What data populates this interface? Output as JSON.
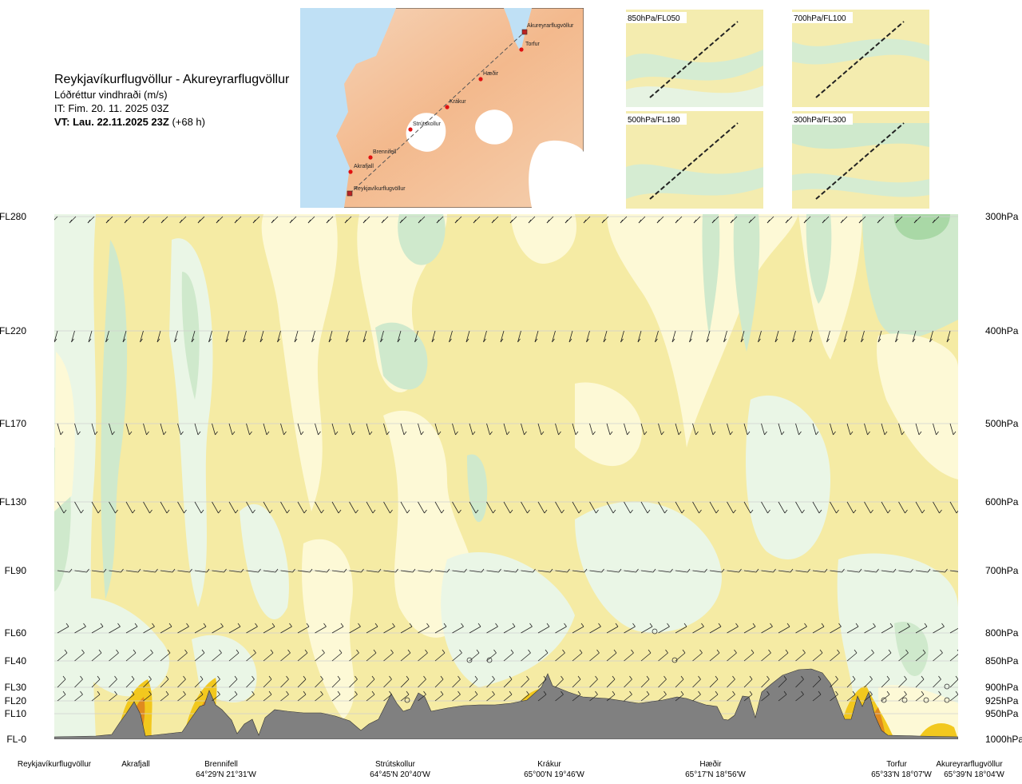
{
  "title": {
    "route": "Reykjavíkurflugvöllur - Akureyrarflugvöllur",
    "subtitle": "Lóðréttur vindhraði (m/s)",
    "issue_time": "IT: Fim. 20. 11. 2025 03Z",
    "valid_time_bold": "VT: Lau. 22.11.2025 23Z",
    "valid_offset": "(+68 h)"
  },
  "map": {
    "places": [
      "Akureyrarflugvöllur",
      "Torfur",
      "Hæðir",
      "Krákur",
      "Strútskollur",
      "Brennifell",
      "Akrafjall",
      "Reykjavíkurflugvöllur"
    ]
  },
  "thumbnails": [
    {
      "label": "850hPa/FL050"
    },
    {
      "label": "700hPa/FL100"
    },
    {
      "label": "500hPa/FL180"
    },
    {
      "label": "300hPa/FL300"
    }
  ],
  "colors": {
    "up_light": "#fdf9d6",
    "up_mid": "#f5eba4",
    "up_strong": "#f2c81e",
    "up_vstrong": "#e08a1e",
    "down_light": "#eaf6e6",
    "down_mid": "#cfe9cc",
    "down_strong": "#a9d8a6",
    "terrain": "#808080"
  },
  "chart_data": {
    "type": "heatmap",
    "title": "Reykjavíkurflugvöllur - Akureyrarflugvöllur",
    "variable": "Lóðréttur vindhraði (m/s)",
    "y_left_levels": [
      {
        "fl": "FL280",
        "hpa": "300hPa"
      },
      {
        "fl": "FL220",
        "hpa": "400hPa"
      },
      {
        "fl": "FL170",
        "hpa": "500hPa"
      },
      {
        "fl": "FL130",
        "hpa": "600hPa"
      },
      {
        "fl": "FL90",
        "hpa": "700hPa"
      },
      {
        "fl": "FL60",
        "hpa": "800hPa"
      },
      {
        "fl": "FL40",
        "hpa": "850hPa"
      },
      {
        "fl": "FL30",
        "hpa": "900hPa"
      },
      {
        "fl": "FL20",
        "hpa": "925hPa"
      },
      {
        "fl": "FL10",
        "hpa": "950hPa"
      },
      {
        "fl": "FL-0",
        "hpa": "1000hPa"
      }
    ],
    "waypoints": [
      {
        "name": "Reykjavíkurflugvöllur",
        "coord": ""
      },
      {
        "name": "Akrafjall",
        "coord": ""
      },
      {
        "name": "Brennifell",
        "coord": "64°29'N 21°31'W"
      },
      {
        "name": "Strútskollur",
        "coord": "64°45'N 20°40'W"
      },
      {
        "name": "Krákur",
        "coord": "65°00'N 19°46'W"
      },
      {
        "name": "Hæðir",
        "coord": "65°17'N 18°56'W"
      },
      {
        "name": "Torfur",
        "coord": "65°33'N 18°07'W"
      },
      {
        "name": "Akureyrarflugvöllur",
        "coord": "65°39'N 18°04'W"
      }
    ]
  }
}
